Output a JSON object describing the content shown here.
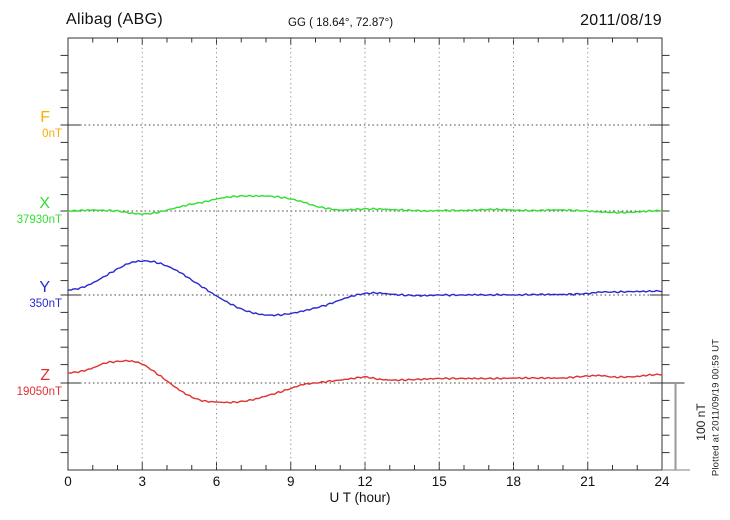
{
  "header": {
    "station": "Alibag (ABG)",
    "coords": "GG ( 18.64°,  72.87°)",
    "date": "2011/08/19"
  },
  "axis": {
    "xlabel": "U T (hour)"
  },
  "scalebar": {
    "label": "100 nT",
    "span_nT": 100
  },
  "footer": {
    "plotted_at": "Plotted at 2011/09/19 00:59 UT"
  },
  "chart_data": {
    "type": "line",
    "title": "Alibag (ABG) magnetogram 2011/08/19",
    "xlabel": "U T (hour)",
    "x_range": [
      0,
      24
    ],
    "x_ticks": [
      0,
      3,
      6,
      9,
      12,
      15,
      18,
      21,
      24
    ],
    "grid": "dotted vertical every 3 h, dotted horizontal at each component baseline",
    "y_scale_note": "vertical bar = 100 nT; values are deviations (nT) from each component baseline",
    "series": [
      {
        "name": "F",
        "baseline_label": "0nT",
        "baseline_nT": 0,
        "color": "#FFAC00",
        "points": []
      },
      {
        "name": "X",
        "baseline_label": "37930nT",
        "baseline_nT": 37930,
        "color": "#33DD33",
        "points": [
          [
            0,
            0
          ],
          [
            0.5,
            0.6
          ],
          [
            1,
            1.1
          ],
          [
            1.5,
            0.6
          ],
          [
            2,
            0
          ],
          [
            2.5,
            -2.3
          ],
          [
            3,
            -3.4
          ],
          [
            3.5,
            -2.3
          ],
          [
            4,
            1.1
          ],
          [
            4.5,
            4.6
          ],
          [
            5,
            8
          ],
          [
            5.5,
            10.3
          ],
          [
            6,
            13.8
          ],
          [
            6.5,
            16.1
          ],
          [
            7,
            17.2
          ],
          [
            7.5,
            17.2
          ],
          [
            8,
            17.2
          ],
          [
            8.5,
            16.1
          ],
          [
            9,
            13.8
          ],
          [
            9.5,
            10.3
          ],
          [
            10,
            5.7
          ],
          [
            10.5,
            2.9
          ],
          [
            11,
            1.1
          ],
          [
            11.5,
            1.7
          ],
          [
            12,
            2.3
          ],
          [
            12.5,
            2.3
          ],
          [
            13,
            1.7
          ],
          [
            13.5,
            1.1
          ],
          [
            14,
            0.6
          ],
          [
            14.5,
            0
          ],
          [
            15,
            0.6
          ],
          [
            15.5,
            0.6
          ],
          [
            16,
            0.6
          ],
          [
            16.5,
            1.1
          ],
          [
            17,
            1.7
          ],
          [
            17.5,
            1.7
          ],
          [
            18,
            1.1
          ],
          [
            18.5,
            0.6
          ],
          [
            19,
            0.6
          ],
          [
            19.5,
            1.1
          ],
          [
            20,
            1.1
          ],
          [
            20.5,
            0.6
          ],
          [
            21,
            0
          ],
          [
            21.5,
            -1.1
          ],
          [
            22,
            -1.7
          ],
          [
            22.5,
            -1.7
          ],
          [
            23,
            -1.1
          ],
          [
            23.5,
            0
          ],
          [
            24,
            0.6
          ]
        ]
      },
      {
        "name": "Y",
        "baseline_label": "350nT",
        "baseline_nT": 350,
        "color": "#2929CC",
        "points": [
          [
            0,
            5.7
          ],
          [
            0.5,
            8
          ],
          [
            1,
            13.8
          ],
          [
            1.5,
            21.8
          ],
          [
            2,
            29.9
          ],
          [
            2.5,
            36.8
          ],
          [
            3,
            39.1
          ],
          [
            3.5,
            37.9
          ],
          [
            4,
            33.3
          ],
          [
            4.5,
            26.4
          ],
          [
            5,
            17.2
          ],
          [
            5.5,
            8
          ],
          [
            6,
            -1.1
          ],
          [
            6.5,
            -9.2
          ],
          [
            7,
            -16.1
          ],
          [
            7.5,
            -20.7
          ],
          [
            8,
            -23
          ],
          [
            8.5,
            -23
          ],
          [
            9,
            -21.3
          ],
          [
            9.5,
            -18.4
          ],
          [
            10,
            -14.9
          ],
          [
            10.5,
            -10.9
          ],
          [
            11,
            -5.7
          ],
          [
            11.5,
            -1.1
          ],
          [
            12,
            1.7
          ],
          [
            12.5,
            2.3
          ],
          [
            13,
            1.1
          ],
          [
            13.5,
            0
          ],
          [
            14,
            -0.6
          ],
          [
            14.5,
            -0.6
          ],
          [
            15,
            0
          ],
          [
            15.5,
            0
          ],
          [
            16,
            0
          ],
          [
            16.5,
            0.3
          ],
          [
            17,
            0
          ],
          [
            17.5,
            0.3
          ],
          [
            18,
            0
          ],
          [
            18.5,
            0.3
          ],
          [
            19,
            0.6
          ],
          [
            19.5,
            0.6
          ],
          [
            20,
            0.6
          ],
          [
            20.5,
            1.1
          ],
          [
            21,
            1.7
          ],
          [
            21.5,
            3.4
          ],
          [
            22,
            3.4
          ],
          [
            22.5,
            3.7
          ],
          [
            23,
            4
          ],
          [
            23.5,
            4.3
          ],
          [
            24,
            4.6
          ]
        ]
      },
      {
        "name": "Z",
        "baseline_label": "19050nT",
        "baseline_nT": 19050,
        "color": "#E03030",
        "points": [
          [
            0,
            11.5
          ],
          [
            0.5,
            13.2
          ],
          [
            1,
            17.2
          ],
          [
            1.5,
            23
          ],
          [
            2,
            24.7
          ],
          [
            2.5,
            25.3
          ],
          [
            3,
            21.8
          ],
          [
            3.5,
            12.6
          ],
          [
            4,
            2.3
          ],
          [
            4.5,
            -8
          ],
          [
            5,
            -16.1
          ],
          [
            5.5,
            -20.7
          ],
          [
            6,
            -21.8
          ],
          [
            6.5,
            -22.4
          ],
          [
            7,
            -21.3
          ],
          [
            7.5,
            -19
          ],
          [
            8,
            -14.9
          ],
          [
            8.5,
            -10.9
          ],
          [
            9,
            -6.3
          ],
          [
            9.5,
            -1.7
          ],
          [
            10,
            0
          ],
          [
            10.5,
            1.7
          ],
          [
            11,
            3.4
          ],
          [
            11.5,
            5.2
          ],
          [
            12,
            6.9
          ],
          [
            12.5,
            4.6
          ],
          [
            13,
            3.4
          ],
          [
            13.5,
            3.4
          ],
          [
            14,
            4
          ],
          [
            14.5,
            4.6
          ],
          [
            15,
            5.2
          ],
          [
            15.5,
            5.2
          ],
          [
            16,
            5.2
          ],
          [
            16.5,
            5.2
          ],
          [
            17,
            5.2
          ],
          [
            17.5,
            5.2
          ],
          [
            18,
            5.7
          ],
          [
            18.5,
            5.7
          ],
          [
            19,
            5.7
          ],
          [
            19.5,
            5.7
          ],
          [
            20,
            5.7
          ],
          [
            20.5,
            6.9
          ],
          [
            21,
            8
          ],
          [
            21.5,
            8.6
          ],
          [
            22,
            6.9
          ],
          [
            22.5,
            6.9
          ],
          [
            23,
            7.5
          ],
          [
            23.5,
            9.2
          ],
          [
            24,
            9.8
          ]
        ]
      }
    ]
  }
}
